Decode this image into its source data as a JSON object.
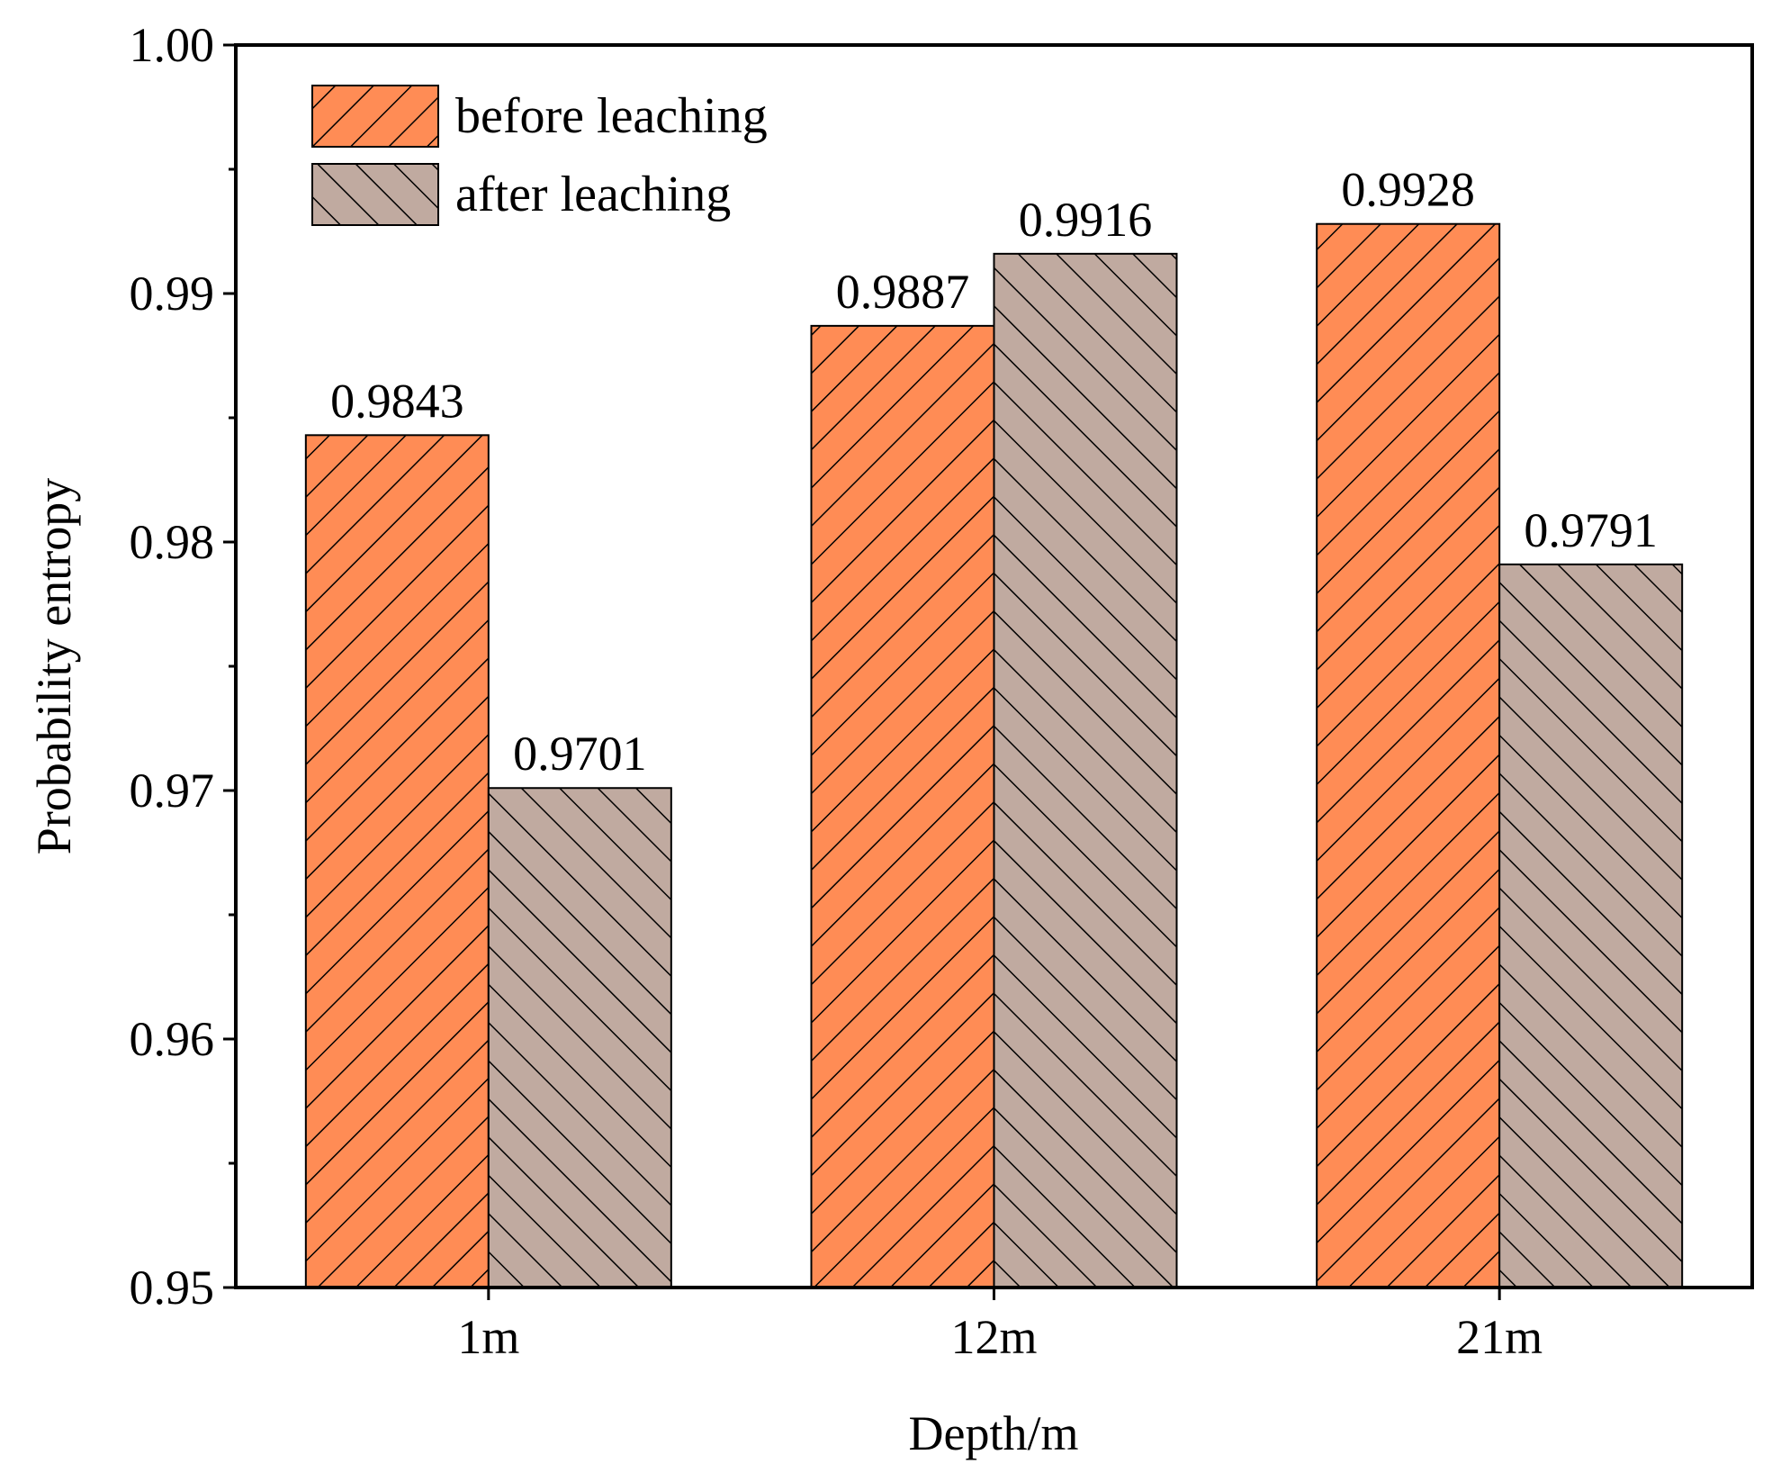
{
  "chart_data": {
    "type": "bar",
    "title": "",
    "xlabel": "Depth/m",
    "ylabel": "Probability entropy",
    "categories": [
      "1m",
      "12m",
      "21m"
    ],
    "ylim": [
      0.95,
      1.0
    ],
    "y_ticks": [
      {
        "value": 0.95,
        "label": "0.95"
      },
      {
        "value": 0.96,
        "label": "0.96"
      },
      {
        "value": 0.97,
        "label": "0.97"
      },
      {
        "value": 0.98,
        "label": "0.98"
      },
      {
        "value": 0.99,
        "label": "0.99"
      },
      {
        "value": 1.0,
        "label": "1.00"
      }
    ],
    "y_minor_step": 0.005,
    "legend_position": "top-left",
    "series": [
      {
        "name": "before leaching",
        "color": "#FF8C55",
        "hatch": "forward-diagonal",
        "values": [
          0.9843,
          0.9887,
          0.9928
        ],
        "labels": [
          "0.9843",
          "0.9887",
          "0.9928"
        ]
      },
      {
        "name": "after leaching",
        "color": "#C0AAA0",
        "hatch": "back-diagonal",
        "values": [
          0.9701,
          0.9916,
          0.9791
        ],
        "labels": [
          "0.9701",
          "0.9916",
          "0.9791"
        ]
      }
    ]
  }
}
